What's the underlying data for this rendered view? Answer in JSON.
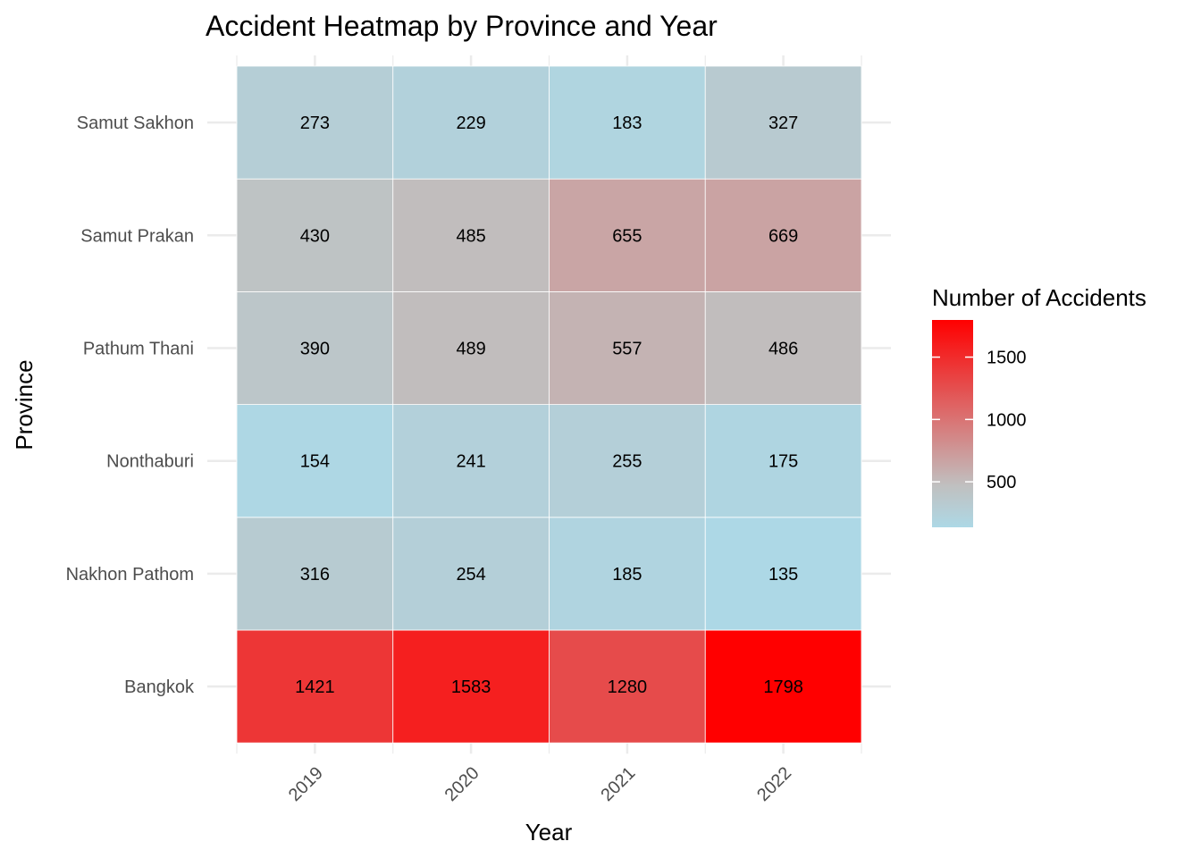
{
  "chart_data": {
    "type": "heatmap",
    "title": "Accident Heatmap by Province and Year",
    "xlabel": "Year",
    "ylabel": "Province",
    "x": [
      "2019",
      "2020",
      "2021",
      "2022"
    ],
    "y": [
      "Bangkok",
      "Nakhon Pathom",
      "Nonthaburi",
      "Pathum Thani",
      "Samut Prakan",
      "Samut Sakhon"
    ],
    "values": {
      "Bangkok": [
        1421,
        1583,
        1280,
        1798
      ],
      "Nakhon Pathom": [
        316,
        254,
        185,
        135
      ],
      "Nonthaburi": [
        154,
        241,
        255,
        175
      ],
      "Pathum Thani": [
        390,
        489,
        557,
        486
      ],
      "Samut Prakan": [
        430,
        485,
        655,
        669
      ],
      "Samut Sakhon": [
        273,
        229,
        183,
        327
      ]
    },
    "legend": {
      "title": "Number of Accidents",
      "ticks": [
        500,
        1000,
        1500
      ],
      "range": [
        135,
        1798
      ],
      "placement": "right"
    },
    "colors": {
      "low": "#add8e6",
      "mid": "#c0c0c0",
      "high": "#ff0000",
      "grid": "#ebebeb",
      "tile_border": "#ffffff"
    },
    "grid": true
  }
}
